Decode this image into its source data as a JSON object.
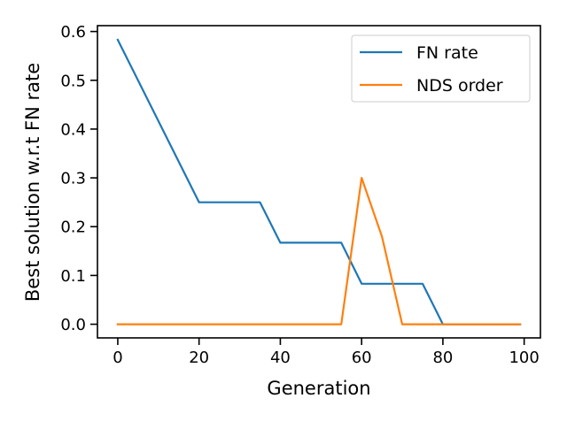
{
  "chart_data": {
    "type": "line",
    "title": "",
    "xlabel": "Generation",
    "ylabel": "Best solution w.r.t FN rate",
    "xlim": [
      -5,
      104
    ],
    "ylim": [
      -0.028,
      0.612
    ],
    "xticks": [
      0,
      20,
      40,
      60,
      80,
      100
    ],
    "xtick_labels": [
      "0",
      "20",
      "40",
      "60",
      "80",
      "100"
    ],
    "yticks": [
      0.0,
      0.1,
      0.2,
      0.3,
      0.4,
      0.5,
      0.6
    ],
    "ytick_labels": [
      "0.0",
      "0.1",
      "0.2",
      "0.3",
      "0.4",
      "0.5",
      "0.6"
    ],
    "grid": false,
    "legend_position": "top-right",
    "series": [
      {
        "name": "FN rate",
        "color": "#1f77b4",
        "x": [
          0,
          20,
          35,
          40,
          55,
          60,
          75,
          80,
          99
        ],
        "y": [
          0.583,
          0.25,
          0.25,
          0.167,
          0.167,
          0.083,
          0.083,
          0.0,
          0.0
        ]
      },
      {
        "name": "NDS order",
        "color": "#ff7f0e",
        "x": [
          0,
          55,
          60,
          65,
          70,
          99
        ],
        "y": [
          0.0,
          0.0,
          0.3,
          0.18,
          0.0,
          0.0
        ]
      }
    ]
  }
}
